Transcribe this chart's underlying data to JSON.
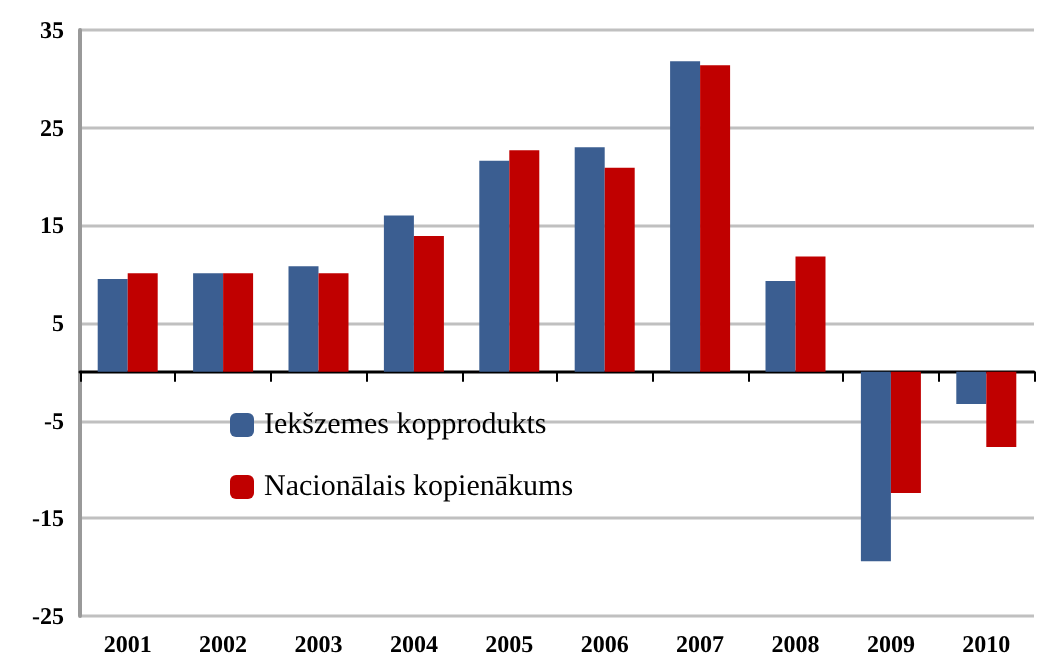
{
  "chart_data": {
    "type": "bar",
    "categories": [
      "2001",
      "2002",
      "2003",
      "2004",
      "2005",
      "2006",
      "2007",
      "2008",
      "2009",
      "2010"
    ],
    "series": [
      {
        "name": "Iekšzemes kopprodukts",
        "color": "#3b5e91",
        "values": [
          9.5,
          10.1,
          10.8,
          16.0,
          21.6,
          23.0,
          31.8,
          9.3,
          -19.4,
          -3.3
        ]
      },
      {
        "name": "Nacionālais kopienākums",
        "color": "#c00000",
        "values": [
          10.1,
          10.1,
          10.1,
          13.9,
          22.7,
          20.9,
          31.4,
          11.8,
          -12.4,
          -7.7
        ]
      }
    ],
    "ylim": [
      -25,
      35
    ],
    "yticks": [
      -25,
      -15,
      -5,
      5,
      15,
      25,
      35
    ],
    "grid": "y",
    "legend": "bottom left"
  }
}
